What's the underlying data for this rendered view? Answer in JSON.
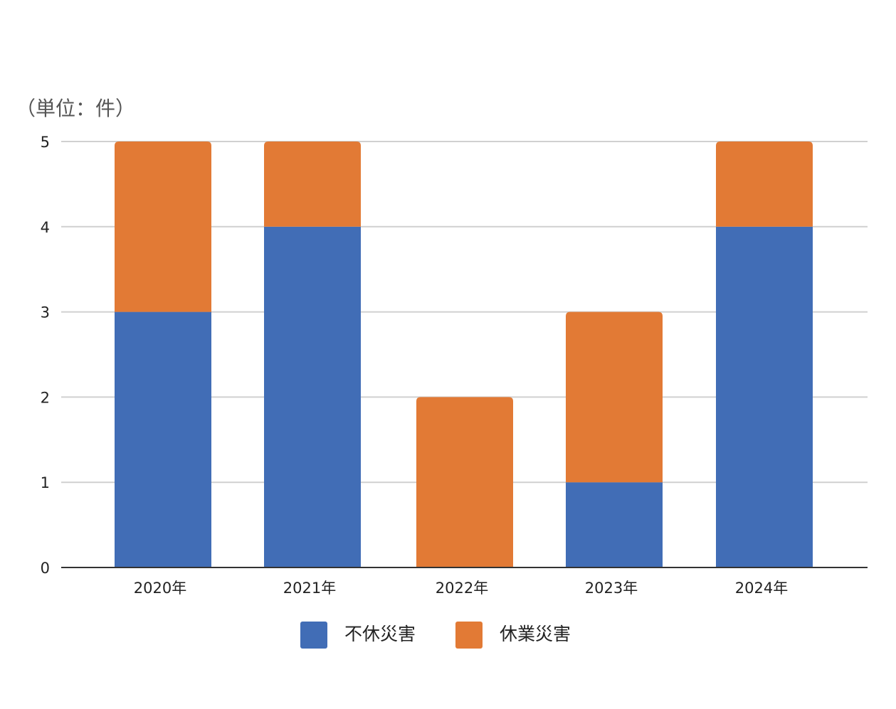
{
  "chart_data": {
    "type": "bar",
    "stacked": true,
    "unit_label": "（単位：件）",
    "categories": [
      "2020年",
      "2021年",
      "2022年",
      "2023年",
      "2024年"
    ],
    "series": [
      {
        "name": "不休災害",
        "color": "#416db6",
        "values": [
          3,
          4,
          0,
          1,
          4
        ]
      },
      {
        "name": "休業災害",
        "color": "#e27a35",
        "values": [
          2,
          1,
          2,
          2,
          1
        ]
      }
    ],
    "ylim": [
      0,
      5
    ],
    "yticks": [
      0,
      1,
      2,
      3,
      4,
      5
    ],
    "grid": true,
    "legend_position": "bottom"
  }
}
